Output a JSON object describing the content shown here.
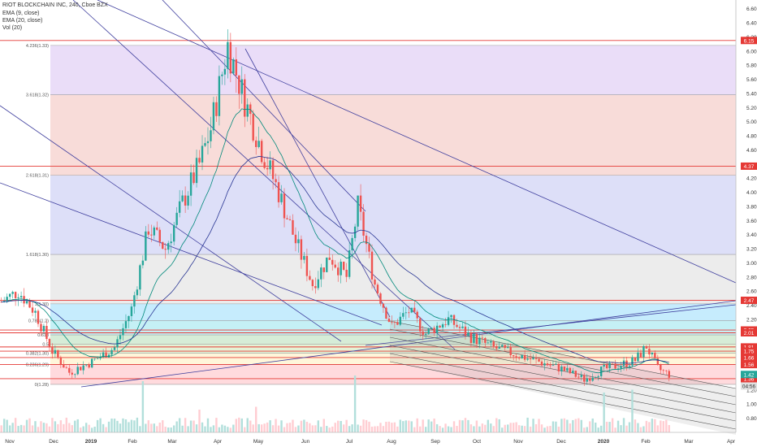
{
  "legend": {
    "symbol_line": "RIOT BLOCKCHAIN INC, 240, Cboe BZX",
    "ema_fast_line": "EMA (9, close)",
    "ema_slow_line": "EMA (20, close)",
    "volume_line": "Vol (20)"
  },
  "colors": {
    "up": "#26a69a",
    "down": "#ef5350",
    "fib_line": "#e53935",
    "trendline": "#3f3f9e",
    "ema_fast": "#00897b",
    "ema_slow": "#283593",
    "volume_up": "#b2dfdb",
    "volume_down": "#ffcdd2"
  },
  "chart_data": {
    "type": "candlestick",
    "title": "RIOT BLOCKCHAIN INC, 240, Cboe BZX",
    "price_axis": {
      "ylim": [
        0.6,
        6.7
      ],
      "ticks": [
        0.8,
        1.0,
        1.2,
        1.4,
        1.6,
        1.8,
        2.0,
        2.2,
        2.4,
        2.6,
        2.8,
        3.0,
        3.2,
        3.4,
        3.6,
        3.8,
        4.0,
        4.2,
        4.4,
        4.6,
        4.8,
        5.0,
        5.2,
        5.4,
        5.6,
        5.8,
        6.0,
        6.2,
        6.4,
        6.6
      ],
      "tick_labels": [
        "0.80",
        "1.00",
        "1.20",
        "1.40",
        "1.60",
        "1.80",
        "2.00",
        "2.20",
        "2.40",
        "2.60",
        "2.80",
        "3.00",
        "3.20",
        "3.40",
        "3.60",
        "3.80",
        "4.00",
        "4.20",
        "4.40",
        "4.60",
        "4.80",
        "5.00",
        "5.20",
        "5.40",
        "5.60",
        "5.80",
        "6.00",
        "6.20",
        "6.40",
        "6.60"
      ]
    },
    "time_axis": {
      "labels": [
        "Nov",
        "Dec",
        "2019",
        "Feb",
        "Mar",
        "Apr",
        "May",
        "Jun",
        "Jul",
        "Aug",
        "Sep",
        "Oct",
        "Nov",
        "Dec",
        "2020",
        "Feb",
        "Mar",
        "Apr"
      ],
      "bold_labels": [
        "2019",
        "2020"
      ]
    },
    "fib_extension": [
      {
        "label": "0(1.28)",
        "price": 1.28,
        "fill": "#e0e0e0"
      },
      {
        "label": "0.236(1.29)",
        "price": 1.56,
        "fill": "#ffcdd2"
      },
      {
        "label": "0.382(1.30)",
        "price": 1.72,
        "fill": "#fff3cd"
      },
      {
        "label": "0.5",
        "price": 1.85,
        "fill": "#dcedc8"
      },
      {
        "label": "0.618",
        "price": 1.98,
        "fill": "#c8e6c9"
      },
      {
        "label": "0.786(1.2)",
        "price": 2.18,
        "fill": "#b2ebf2"
      },
      {
        "label": "1(1.30)",
        "price": 2.42,
        "fill": "#b3e5fc"
      },
      {
        "label": "1.618(1.30)",
        "price": 3.12,
        "fill": "#e6e6e6"
      },
      {
        "label": "2.618(1.31)",
        "price": 4.24,
        "fill": "#d1d4f5"
      },
      {
        "label": "3.618(1.32)",
        "price": 5.38,
        "fill": "#f5d0cc"
      },
      {
        "label": "4.236(1.33)",
        "price": 6.08,
        "fill": "#e3d2f5"
      }
    ],
    "horizontal_levels": [
      {
        "price": 6.15,
        "label": "6.15"
      },
      {
        "price": 4.37,
        "label": "4.37"
      },
      {
        "price": 2.47,
        "label": "2.47"
      },
      {
        "price": 2.05,
        "label": "2.05"
      },
      {
        "price": 2.01,
        "label": "2.01"
      },
      {
        "price": 1.81,
        "label": "1.81"
      },
      {
        "price": 1.75,
        "label": "1.75"
      },
      {
        "price": 1.66,
        "label": "1.66"
      },
      {
        "price": 1.56,
        "label": "1.56"
      },
      {
        "price": 1.36,
        "label": "1.36"
      }
    ],
    "price_badges": [
      {
        "price": 1.42,
        "label": "1.42",
        "color": "#26a69a"
      },
      {
        "price": 1.36,
        "label": "04:56",
        "color": "#e0e0e0",
        "text_color": "#333333"
      }
    ],
    "trend_points": [
      [
        0,
        2.45
      ],
      [
        6,
        2.6
      ],
      [
        12,
        2.3
      ],
      [
        18,
        1.75
      ],
      [
        24,
        1.45
      ],
      [
        32,
        1.6
      ],
      [
        40,
        1.8
      ],
      [
        46,
        2.35
      ],
      [
        52,
        3.5
      ],
      [
        58,
        3.2
      ],
      [
        64,
        3.85
      ],
      [
        70,
        4.4
      ],
      [
        74,
        4.9
      ],
      [
        80,
        6.08
      ],
      [
        86,
        5.3
      ],
      [
        92,
        4.6
      ],
      [
        98,
        4.0
      ],
      [
        104,
        3.3
      ],
      [
        110,
        2.7
      ],
      [
        116,
        3.1
      ],
      [
        122,
        2.8
      ],
      [
        126,
        3.8
      ],
      [
        132,
        2.7
      ],
      [
        138,
        2.1
      ],
      [
        144,
        2.32
      ],
      [
        150,
        2.0
      ],
      [
        158,
        2.2
      ],
      [
        166,
        1.95
      ],
      [
        174,
        1.8
      ],
      [
        182,
        1.7
      ],
      [
        190,
        1.6
      ],
      [
        198,
        1.5
      ],
      [
        206,
        1.35
      ],
      [
        212,
        1.48
      ],
      [
        218,
        1.55
      ],
      [
        224,
        1.62
      ],
      [
        228,
        1.82
      ],
      [
        232,
        1.5
      ],
      [
        236,
        1.42
      ]
    ],
    "bars_total": 240,
    "volume_spikes": [
      {
        "bar": 50,
        "value": 0.9
      },
      {
        "bar": 125,
        "value": 1.0
      },
      {
        "bar": 213,
        "value": 0.7
      },
      {
        "bar": 223,
        "value": 0.75
      },
      {
        "bar": 90,
        "value": 0.45
      },
      {
        "bar": 70,
        "value": 0.4
      }
    ],
    "grid": false
  }
}
